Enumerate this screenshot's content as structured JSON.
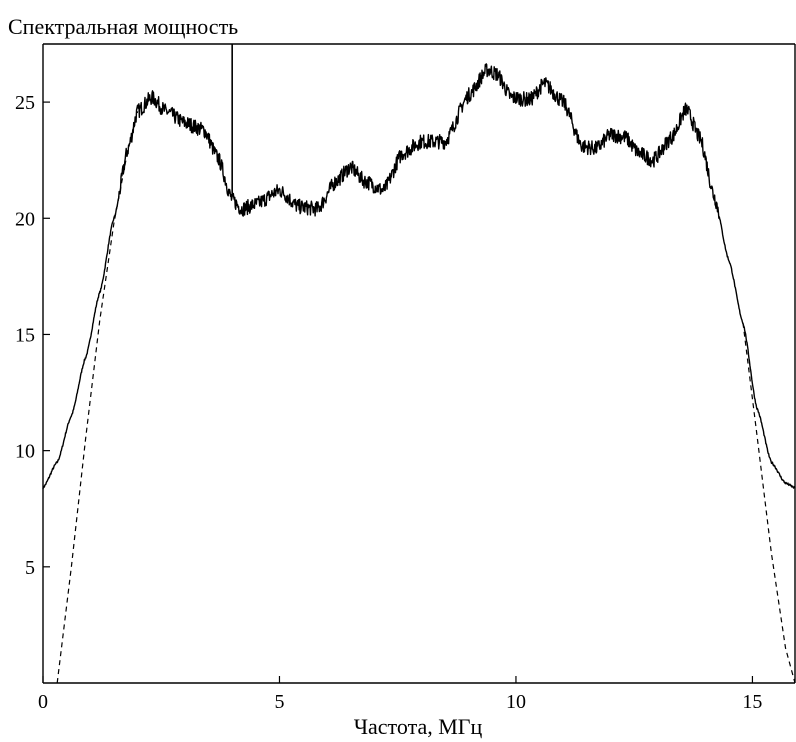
{
  "chart_data": {
    "type": "line",
    "ylabel": "Спектральная мощность",
    "xlabel": "Частота, МГц",
    "xlim": [
      0,
      15.9
    ],
    "ylim": [
      0,
      27.5
    ],
    "x_ticks": [
      0,
      5,
      10,
      15
    ],
    "y_ticks": [
      5,
      10,
      15,
      20,
      25
    ],
    "grid": false,
    "colors": {
      "axes": "#000000",
      "series": "#000000"
    },
    "series": [
      {
        "style": "solid",
        "noisy": true,
        "x": [
          0,
          0.3,
          0.6,
          0.9,
          1.2,
          1.5,
          1.8,
          2.0,
          2.3,
          2.6,
          3.0,
          3.4,
          3.7,
          4.0,
          4.2,
          4.5,
          5.0,
          5.4,
          5.8,
          6.2,
          6.5,
          6.8,
          7.2,
          7.6,
          8.0,
          8.5,
          9.0,
          9.4,
          9.6,
          9.9,
          10.3,
          10.6,
          11.0,
          11.4,
          11.7,
          12.0,
          12.3,
          12.6,
          12.9,
          13.3,
          13.6,
          13.9,
          14.2,
          14.5,
          14.8,
          15.1,
          15.4,
          15.7,
          15.9
        ],
        "y": [
          8.4,
          9.5,
          11.5,
          14.0,
          16.8,
          20.0,
          23.0,
          24.6,
          25.2,
          24.6,
          24.1,
          23.8,
          22.6,
          20.8,
          20.4,
          20.6,
          21.2,
          20.5,
          20.4,
          21.6,
          22.2,
          21.6,
          21.2,
          22.8,
          23.3,
          23.3,
          25.3,
          26.4,
          26.2,
          25.2,
          25.1,
          25.8,
          25.0,
          23.1,
          23.0,
          23.6,
          23.5,
          22.8,
          22.5,
          23.5,
          24.7,
          23.4,
          20.9,
          18.2,
          15.5,
          11.8,
          9.5,
          8.6,
          8.4
        ]
      },
      {
        "style": "dashed",
        "noisy": false,
        "x": [
          0.3,
          0.6,
          0.9,
          1.2,
          1.5,
          1.8,
          2.0,
          14.8,
          15.1,
          15.4,
          15.7,
          15.9
        ],
        "y": [
          0.0,
          5.0,
          10.5,
          15.6,
          19.8,
          23.0,
          24.6,
          15.5,
          10.6,
          5.6,
          1.5,
          0.0
        ]
      },
      {
        "style": "solid",
        "noisy": false,
        "x": [
          4.0,
          4.0
        ],
        "y": [
          21.0,
          27.5
        ]
      }
    ]
  }
}
